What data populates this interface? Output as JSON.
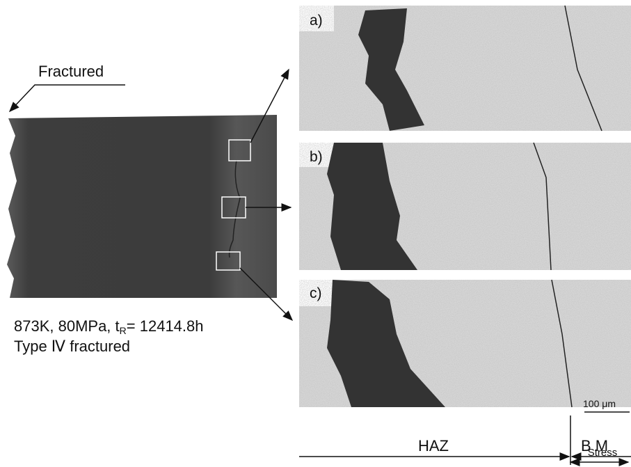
{
  "figure": {
    "specimen": {
      "fracture_label": "Fractured",
      "condition": {
        "prefix": "873K, 80MPa, t",
        "subscript": "R",
        "suffix": "= 12414.8h"
      },
      "fracture_type": "Type Ⅳ fractured"
    },
    "panels": [
      {
        "label": "a)"
      },
      {
        "label": "b)"
      },
      {
        "label": "c)"
      }
    ],
    "scale_bar": "100 μm",
    "zones": {
      "haz": "HAZ",
      "bm": "B M",
      "stress": "Stress"
    }
  }
}
